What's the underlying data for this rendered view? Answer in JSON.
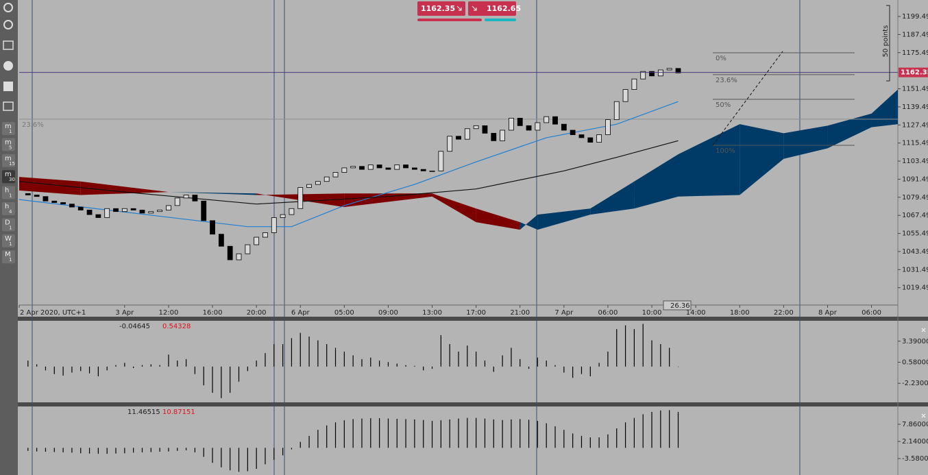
{
  "toolbar": {
    "timeframes": [
      {
        "unit": "m",
        "n": "1"
      },
      {
        "unit": "m",
        "n": "5"
      },
      {
        "unit": "m",
        "n": "15"
      },
      {
        "unit": "m",
        "n": "30"
      },
      {
        "unit": "h",
        "n": "1"
      },
      {
        "unit": "h",
        "n": "4"
      },
      {
        "unit": "D",
        "n": "1"
      },
      {
        "unit": "W",
        "n": "1"
      },
      {
        "unit": "M",
        "n": "1"
      }
    ]
  },
  "quote": {
    "sell": "1162.35",
    "buy": "1162.65"
  },
  "chart_data": [
    {
      "type": "candlestick",
      "x": [
        -1,
        0,
        1,
        2,
        3,
        4,
        5,
        6,
        7,
        8,
        9,
        10,
        11,
        12,
        13,
        14,
        15,
        16,
        17,
        18,
        19,
        20,
        21,
        22,
        23,
        24,
        25,
        26,
        27,
        28,
        29,
        30,
        31,
        32,
        33,
        34,
        35,
        36,
        37,
        38,
        39,
        40,
        41,
        42,
        43,
        44,
        45,
        46,
        47,
        48,
        49,
        50,
        51,
        52,
        53,
        54,
        55,
        56,
        57,
        58,
        59,
        60,
        61,
        62,
        63,
        64,
        65,
        66,
        67,
        68,
        69,
        70,
        71,
        72,
        73
      ],
      "open": [
        1082,
        1081,
        1080,
        1077,
        1076,
        1075,
        1073,
        1071,
        1068,
        1066,
        1072,
        1070,
        1072,
        1071,
        1069,
        1070,
        1071,
        1074,
        1079,
        1081,
        1077,
        1064,
        1055,
        1047,
        1038,
        1042,
        1048,
        1053,
        1056,
        1066,
        1068,
        1072,
        1086,
        1088,
        1090,
        1093,
        1096,
        1099,
        1100,
        1098,
        1101,
        1099,
        1098,
        1101,
        1099,
        1098,
        1097,
        1097,
        1110,
        1120,
        1118,
        1125,
        1127,
        1122,
        1117,
        1124,
        1132,
        1127,
        1124,
        1129,
        1133,
        1128,
        1124,
        1121,
        1119,
        1116,
        1121,
        1131,
        1143,
        1151,
        1158,
        1163,
        1160,
        1164,
        1165
      ],
      "close": [
        1081,
        1080,
        1077,
        1076,
        1075,
        1073,
        1071,
        1068,
        1066,
        1072,
        1070,
        1072,
        1071,
        1069,
        1070,
        1071,
        1074,
        1079,
        1081,
        1077,
        1064,
        1055,
        1047,
        1038,
        1042,
        1048,
        1053,
        1056,
        1066,
        1068,
        1072,
        1086,
        1088,
        1090,
        1093,
        1096,
        1099,
        1100,
        1098,
        1101,
        1099,
        1098,
        1101,
        1099,
        1098,
        1097,
        1097,
        1110,
        1120,
        1118,
        1125,
        1127,
        1122,
        1117,
        1124,
        1132,
        1127,
        1124,
        1129,
        1133,
        1128,
        1124,
        1121,
        1119,
        1116,
        1121,
        1131,
        1143,
        1151,
        1158,
        1163,
        1160,
        1164,
        1165,
        1162
      ],
      "up_color": "#d9d9d9",
      "down_color": "#000000",
      "series": [
        {
          "color": "#1f7fd1",
          "x": [
            -2,
            24,
            29,
            35,
            43,
            50,
            58,
            66,
            73
          ],
          "values": [
            1078,
            1060,
            1060,
            1074,
            1088,
            1103,
            1119,
            1128,
            1143
          ]
        },
        {
          "color": "#111111",
          "x": [
            -2,
            10,
            25,
            40,
            50,
            60,
            66,
            73
          ],
          "values": [
            1090,
            1083,
            1075,
            1080,
            1085,
            1097,
            1106,
            1117
          ]
        }
      ],
      "cloud": {
        "x": [
          -2,
          5,
          15,
          25,
          35,
          45,
          50,
          55,
          57,
          63,
          68,
          73,
          80,
          85,
          90,
          95,
          98
        ],
        "span_a": [
          1084,
          1081,
          1083,
          1082,
          1073,
          1080,
          1063,
          1058,
          1068,
          1072,
          1090,
          1108,
          1128,
          1122,
          1127,
          1135,
          1151
        ],
        "span_b": [
          1093,
          1090,
          1083,
          1081,
          1082,
          1082,
          1072,
          1063,
          1058,
          1068,
          1072,
          1080,
          1081,
          1105,
          1112,
          1126,
          1128
        ],
        "up_color": "#003a66",
        "down_color": "#7d0000"
      },
      "xlim": [
        -2,
        98
      ],
      "xticks": [
        {
          "value": -2,
          "label": "2 Apr 2020, UTC+1"
        },
        {
          "value": 10,
          "label": "3 Apr"
        },
        {
          "value": 15,
          "label": "12:00"
        },
        {
          "value": 20,
          "label": "16:00"
        },
        {
          "value": 25,
          "label": "20:00"
        },
        {
          "value": 30,
          "label": "6 Apr"
        },
        {
          "value": 35,
          "label": "05:00"
        },
        {
          "value": 40,
          "label": "09:00"
        },
        {
          "value": 45,
          "label": "13:00"
        },
        {
          "value": 50,
          "label": "17:00"
        },
        {
          "value": 55,
          "label": "21:00"
        },
        {
          "value": 60,
          "label": "7 Apr"
        },
        {
          "value": 65,
          "label": "06:00"
        },
        {
          "value": 70,
          "label": "10:00"
        },
        {
          "value": 75,
          "label": "14:00"
        },
        {
          "value": 80,
          "label": "18:00"
        },
        {
          "value": 85,
          "label": "22:00"
        },
        {
          "value": 90,
          "label": "8 Apr"
        },
        {
          "value": 95,
          "label": "06:00"
        }
      ],
      "ylim": [
        1008,
        1210.4
      ],
      "yticks": [
        1199.49,
        1187.49,
        1175.49,
        1151.49,
        1139.49,
        1127.49,
        1115.49,
        1103.49,
        1091.49,
        1079.49,
        1067.49,
        1055.49,
        1043.49,
        1031.49,
        1019.49
      ],
      "current_price": 1162.35,
      "range_label": "50 points",
      "cursor_label": "26.36",
      "fib": [
        {
          "value": 1175.4,
          "label": "0%"
        },
        {
          "value": 1160.9,
          "label": "23.6%"
        },
        {
          "value": 1144.5,
          "label": "50%"
        },
        {
          "value": 1114,
          "label": "100%"
        }
      ],
      "fib_left": {
        "value": 1131.3,
        "label": "23.6%"
      }
    },
    {
      "type": "bar",
      "readout": [
        -0.04645,
        0.54328
      ],
      "color": "#000000",
      "values": [
        0.8,
        0.3,
        -0.5,
        -1.0,
        -1.2,
        -0.8,
        -0.6,
        -0.9,
        -1.3,
        -0.5,
        0.2,
        0.5,
        -0.2,
        0.2,
        0.3,
        0.2,
        1.6,
        0.8,
        1.0,
        -1.0,
        -2.5,
        -3.5,
        -4.2,
        -3.5,
        -2.0,
        -0.6,
        0.8,
        1.8,
        3.0,
        3.0,
        3.8,
        4.5,
        4.0,
        3.5,
        3.0,
        2.5,
        2.0,
        1.5,
        1.0,
        1.2,
        0.8,
        0.6,
        0.4,
        0.2,
        0.1,
        -0.5,
        -0.3,
        4.2,
        3.0,
        2.0,
        2.8,
        2.0,
        0.8,
        -0.7,
        1.5,
        2.5,
        1.0,
        -0.3,
        1.2,
        0.8,
        0.2,
        -0.8,
        -1.5,
        -1.0,
        -1.3,
        0.5,
        2.0,
        5.0,
        5.5,
        5.0,
        5.7,
        3.5,
        3.0,
        2.5,
        0
      ],
      "ylim": [
        -4.77,
        6.11
      ],
      "yticks": [
        {
          "value": 3.39,
          "label": "3.39000"
        },
        {
          "value": 0.58,
          "label": "0.58000"
        },
        {
          "value": -2.23,
          "label": "-2.23000"
        }
      ]
    },
    {
      "type": "bar",
      "readout": [
        11.46515,
        10.87151
      ],
      "color": "#000000",
      "values": [
        -1,
        -1.2,
        -1.3,
        -1.4,
        -1.5,
        -1.6,
        -1.8,
        -1.9,
        -2.0,
        -2.0,
        -1.9,
        -1.8,
        -1.6,
        -1.5,
        -1.4,
        -1.3,
        -1.2,
        -1.0,
        -0.8,
        -1.5,
        -3,
        -5,
        -6.5,
        -7.5,
        -8,
        -7.8,
        -7,
        -5.5,
        -4,
        -2.5,
        -0.5,
        2,
        4,
        6,
        7.5,
        8.5,
        9.2,
        9.6,
        9.8,
        9.9,
        9.9,
        9.8,
        9.7,
        9.6,
        9.5,
        9.3,
        9,
        9.2,
        9.5,
        9.8,
        10,
        10,
        9.8,
        9.5,
        9.3,
        9.5,
        9.6,
        9.4,
        9,
        8.2,
        7.2,
        6,
        4.8,
        4,
        3.5,
        3.5,
        4.5,
        6.5,
        8.5,
        10,
        11.2,
        12,
        12.5,
        12.6,
        12
      ],
      "ylim": [
        -9.06,
        13.82
      ],
      "yticks": [
        {
          "value": 7.86,
          "label": "7.86000"
        },
        {
          "value": 2.14,
          "label": "2.14000"
        },
        {
          "value": -3.58,
          "label": "-3.58000"
        }
      ]
    }
  ]
}
